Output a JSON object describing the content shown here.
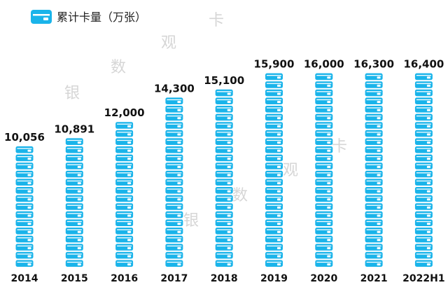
{
  "chart_data": {
    "type": "bar",
    "categories": [
      "2014",
      "2015",
      "2016",
      "2017",
      "2018",
      "2019",
      "2020",
      "2021",
      "2022H1"
    ],
    "series": [
      {
        "name": "累计卡量（万张）",
        "values": [
          10056,
          10891,
          12000,
          14300,
          15100,
          15900,
          16000,
          16300,
          16400
        ],
        "labels": [
          "10,056",
          "10,891",
          "12,000",
          "14,300",
          "15,100",
          "15,900",
          "16,000",
          "16,300",
          "16,400"
        ]
      }
    ],
    "ylim": [
      0,
      16400
    ],
    "grid": false,
    "legend_position": "top-left",
    "bar_style": "stacked-card-icons",
    "colors": {
      "bar": "#1ab4ea",
      "card_detail": "#ffffff",
      "text": "#111111",
      "watermark": "#d6d6d6"
    }
  },
  "watermark": [
    "银",
    "数",
    "观",
    "卡"
  ]
}
